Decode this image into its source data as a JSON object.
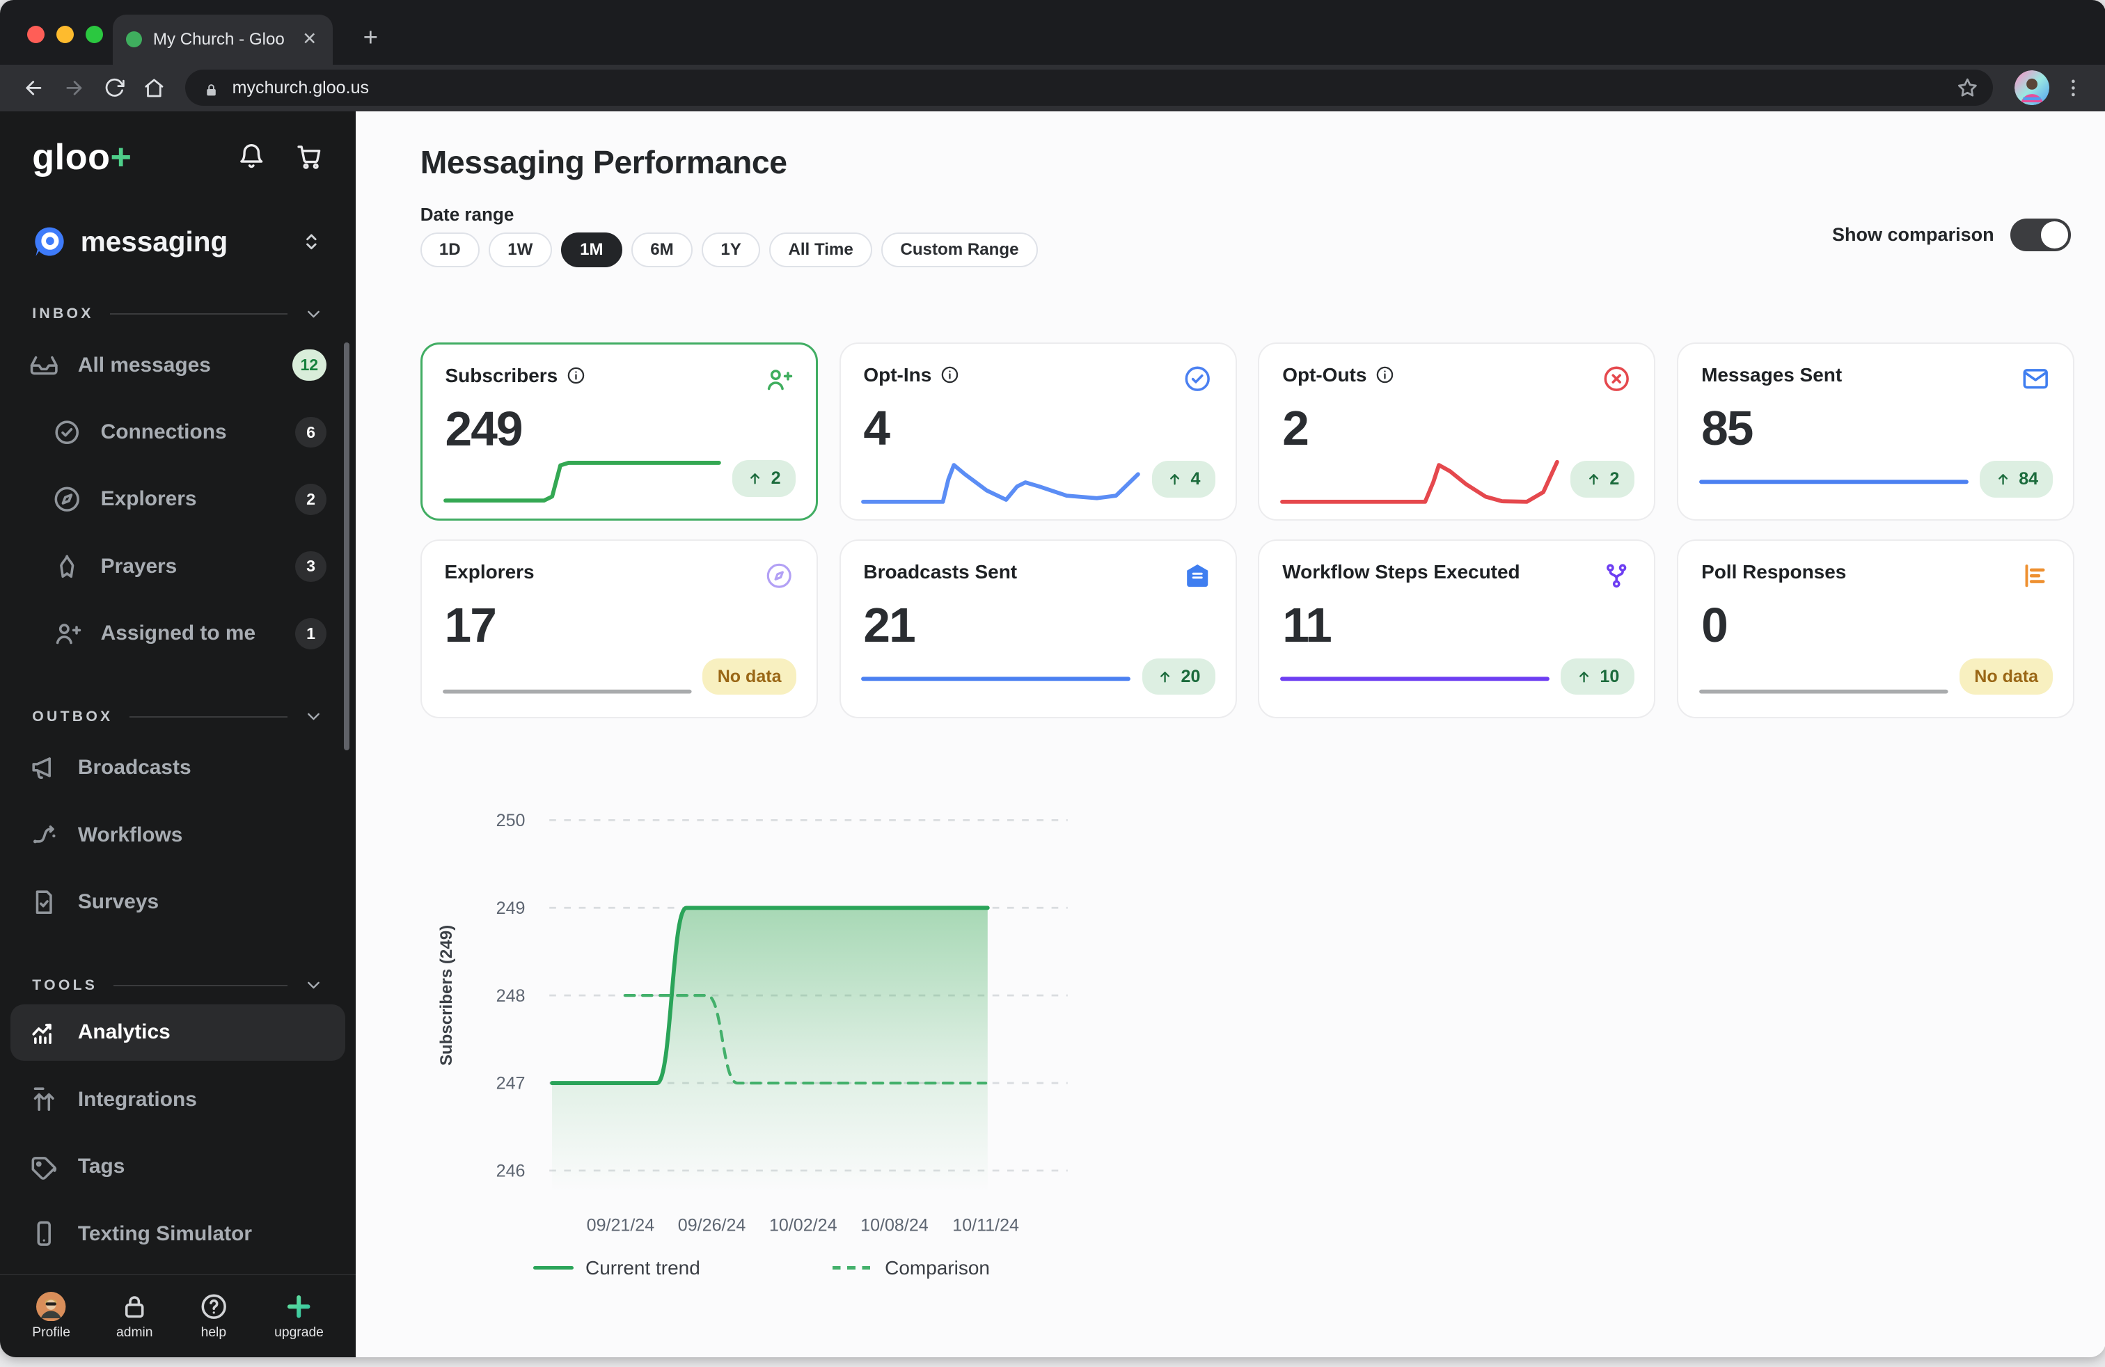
{
  "browser": {
    "tab_title": "My Church - Gloo",
    "url": "mychurch.gloo.us",
    "new_tab_label": "+",
    "tab_close_label": "✕"
  },
  "sidebar": {
    "logo_text": "gloo",
    "logo_plus": "+",
    "app_name": "messaging",
    "sections": [
      {
        "label": "INBOX",
        "items": [
          {
            "label": "All messages",
            "icon": "inbox-icon",
            "badge": "12",
            "badge_variant": "green"
          },
          {
            "label": "Connections",
            "icon": "badge-check-icon",
            "badge": "6",
            "badge_variant": "dark",
            "indent": true
          },
          {
            "label": "Explorers",
            "icon": "compass-icon",
            "badge": "2",
            "badge_variant": "dark",
            "indent": true
          },
          {
            "label": "Prayers",
            "icon": "prayer-hands-icon",
            "badge": "3",
            "badge_variant": "dark",
            "indent": true
          },
          {
            "label": "Assigned to me",
            "icon": "person-plus-icon",
            "badge": "1",
            "badge_variant": "dark",
            "indent": true
          }
        ]
      },
      {
        "label": "OUTBOX",
        "items": [
          {
            "label": "Broadcasts",
            "icon": "megaphone-icon"
          },
          {
            "label": "Workflows",
            "icon": "workflow-icon"
          },
          {
            "label": "Surveys",
            "icon": "survey-icon"
          }
        ]
      },
      {
        "label": "TOOLS",
        "items": [
          {
            "label": "Analytics",
            "icon": "analytics-icon",
            "active": true
          },
          {
            "label": "Integrations",
            "icon": "integrations-icon"
          },
          {
            "label": "Tags",
            "icon": "tag-icon"
          },
          {
            "label": "Texting Simulator",
            "icon": "phone-icon"
          }
        ]
      }
    ],
    "footer": [
      {
        "label": "Profile",
        "icon": "profile-avatar"
      },
      {
        "label": "admin",
        "icon": "lock-icon"
      },
      {
        "label": "help",
        "icon": "question-icon"
      },
      {
        "label": "upgrade",
        "icon": "upgrade-plus-icon"
      }
    ]
  },
  "header": {
    "title": "Messaging Performance",
    "date_range_label": "Date range",
    "ranges": [
      "1D",
      "1W",
      "1M",
      "6M",
      "1Y",
      "All Time",
      "Custom Range"
    ],
    "selected_range": "1M",
    "show_comparison_label": "Show comparison",
    "show_comparison_on": true
  },
  "cards": [
    {
      "title": "Subscribers",
      "info": true,
      "selected": true,
      "icon": "person-plus-icon",
      "accent": "#3fae5e",
      "value": "249",
      "badge": {
        "type": "up",
        "text": "2"
      },
      "spark": {
        "color": "#34a853",
        "points": [
          [
            0,
            93
          ],
          [
            36,
            93
          ],
          [
            39,
            85
          ],
          [
            42,
            24
          ],
          [
            45,
            19
          ],
          [
            100,
            19
          ]
        ]
      }
    },
    {
      "title": "Opt-Ins",
      "info": true,
      "icon": "check-circle-icon",
      "accent": "#4b80f1",
      "value": "4",
      "badge": {
        "type": "up",
        "text": "4"
      },
      "spark": {
        "color": "#5b8df5",
        "points": [
          [
            0,
            94
          ],
          [
            29,
            94
          ],
          [
            31,
            50
          ],
          [
            33,
            22
          ],
          [
            37,
            40
          ],
          [
            45,
            72
          ],
          [
            52,
            90
          ],
          [
            56,
            64
          ],
          [
            59,
            56
          ],
          [
            64,
            64
          ],
          [
            74,
            82
          ],
          [
            85,
            87
          ],
          [
            92,
            82
          ],
          [
            100,
            40
          ]
        ]
      }
    },
    {
      "title": "Opt-Outs",
      "info": true,
      "icon": "x-circle-icon",
      "accent": "#e5484d",
      "value": "2",
      "badge": {
        "type": "up",
        "text": "2"
      },
      "spark": {
        "color": "#e5484d",
        "points": [
          [
            0,
            94
          ],
          [
            52,
            94
          ],
          [
            55,
            55
          ],
          [
            57,
            22
          ],
          [
            61,
            34
          ],
          [
            67,
            60
          ],
          [
            74,
            84
          ],
          [
            80,
            93
          ],
          [
            89,
            94
          ],
          [
            95,
            75
          ],
          [
            100,
            16
          ]
        ]
      }
    },
    {
      "title": "Messages Sent",
      "info": false,
      "icon": "envelope-icon",
      "accent": "#3f7ef0",
      "value": "85",
      "badge": {
        "type": "up",
        "text": "84"
      },
      "spark": {
        "color": "#4b80f1",
        "points": [
          [
            0,
            55
          ],
          [
            100,
            55
          ]
        ]
      }
    },
    {
      "title": "Explorers",
      "info": false,
      "icon": "compass-badge-icon",
      "accent": "#b2a0f5",
      "value": "17",
      "badge": {
        "type": "nodata",
        "text": "No data"
      },
      "spark": {
        "color": "#a9abad",
        "points": [
          [
            0,
            80
          ],
          [
            100,
            80
          ]
        ]
      }
    },
    {
      "title": "Broadcasts Sent",
      "info": false,
      "icon": "mail-open-icon",
      "accent": "#3f7ef0",
      "value": "21",
      "badge": {
        "type": "up",
        "text": "20"
      },
      "spark": {
        "color": "#4b80f1",
        "points": [
          [
            0,
            55
          ],
          [
            100,
            55
          ]
        ]
      }
    },
    {
      "title": "Workflow Steps Executed",
      "info": false,
      "icon": "branch-icon",
      "accent": "#6d3ef2",
      "value": "11",
      "badge": {
        "type": "up",
        "text": "10"
      },
      "spark": {
        "color": "#6d3ef2",
        "points": [
          [
            0,
            55
          ],
          [
            100,
            55
          ]
        ]
      }
    },
    {
      "title": "Poll Responses",
      "info": false,
      "icon": "bar-chart-icon",
      "accent": "#ee9030",
      "value": "0",
      "badge": {
        "type": "nodata",
        "text": "No data"
      },
      "spark": {
        "color": "#a9abad",
        "points": [
          [
            0,
            80
          ],
          [
            100,
            80
          ]
        ]
      }
    }
  ],
  "chart_data": {
    "type": "line",
    "title": "Subscribers trend over selected date range",
    "ylabel": "Subscribers (249)",
    "yticks": [
      250,
      249,
      248,
      247,
      246
    ],
    "ylim": [
      246,
      250
    ],
    "xtick_labels": [
      "09/21/24",
      "09/26/24",
      "10/02/24",
      "10/08/24",
      "10/11/24"
    ],
    "grid": "horizontal-dashed",
    "legend_position": "bottom",
    "x_unit": "xtick_index",
    "series": [
      {
        "name": "Current trend",
        "style": "solid",
        "color": "#2aa459",
        "area_fill": true,
        "points": [
          [
            -0.75,
            247
          ],
          [
            0.4,
            247
          ],
          [
            0.72,
            249
          ],
          [
            4.02,
            249
          ]
        ]
      },
      {
        "name": "Comparison",
        "style": "dashed",
        "color": "#43b06b",
        "area_fill": false,
        "points": [
          [
            0.05,
            248
          ],
          [
            0.95,
            248
          ],
          [
            1.28,
            247
          ],
          [
            4.0,
            247
          ]
        ]
      }
    ]
  }
}
